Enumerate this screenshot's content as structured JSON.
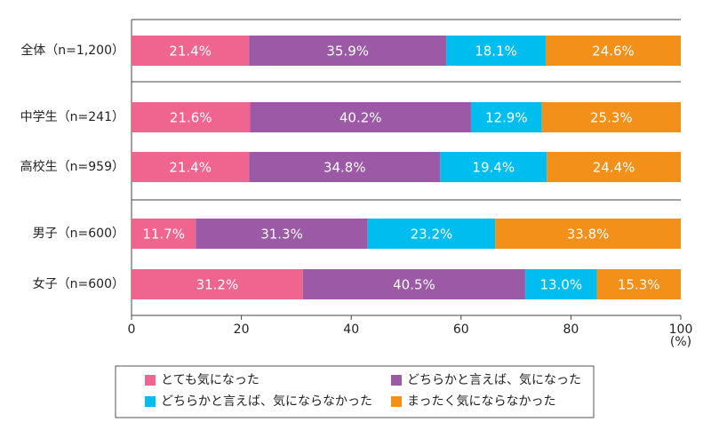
{
  "chart_data": {
    "type": "stacked-barh",
    "categories": [
      "全体（n=1,200）",
      "中学生（n=241）",
      "高校生（n=959）",
      "男子（n=600）",
      "女子（n=600）"
    ],
    "series": [
      {
        "name": "とても気になった",
        "color": "#f06590",
        "values": [
          21.4,
          21.6,
          21.4,
          11.7,
          31.2
        ],
        "value_labels": [
          "21.4%",
          "21.6%",
          "21.4%",
          "11.7%",
          "31.2%"
        ]
      },
      {
        "name": "どちらかと言えば、気になった",
        "color": "#9b59a6",
        "values": [
          35.9,
          40.2,
          34.8,
          31.3,
          40.5
        ],
        "value_labels": [
          "35.9%",
          "40.2%",
          "34.8%",
          "31.3%",
          "40.5%"
        ]
      },
      {
        "name": "どちらかと言えば、気にならなかった",
        "color": "#00bdf0",
        "values": [
          18.1,
          12.9,
          19.4,
          23.2,
          13.0
        ],
        "value_labels": [
          "18.1%",
          "12.9%",
          "19.4%",
          "23.2%",
          "13.0%"
        ]
      },
      {
        "name": "まったく気にならなかった",
        "color": "#f39019",
        "values": [
          24.6,
          25.3,
          24.4,
          33.8,
          15.3
        ],
        "value_labels": [
          "24.6%",
          "25.3%",
          "24.4%",
          "33.8%",
          "15.3%"
        ]
      }
    ],
    "xlim": [
      0,
      100
    ],
    "xticks": [
      0,
      20,
      40,
      60,
      80,
      100
    ],
    "xlabel": "(%)"
  }
}
